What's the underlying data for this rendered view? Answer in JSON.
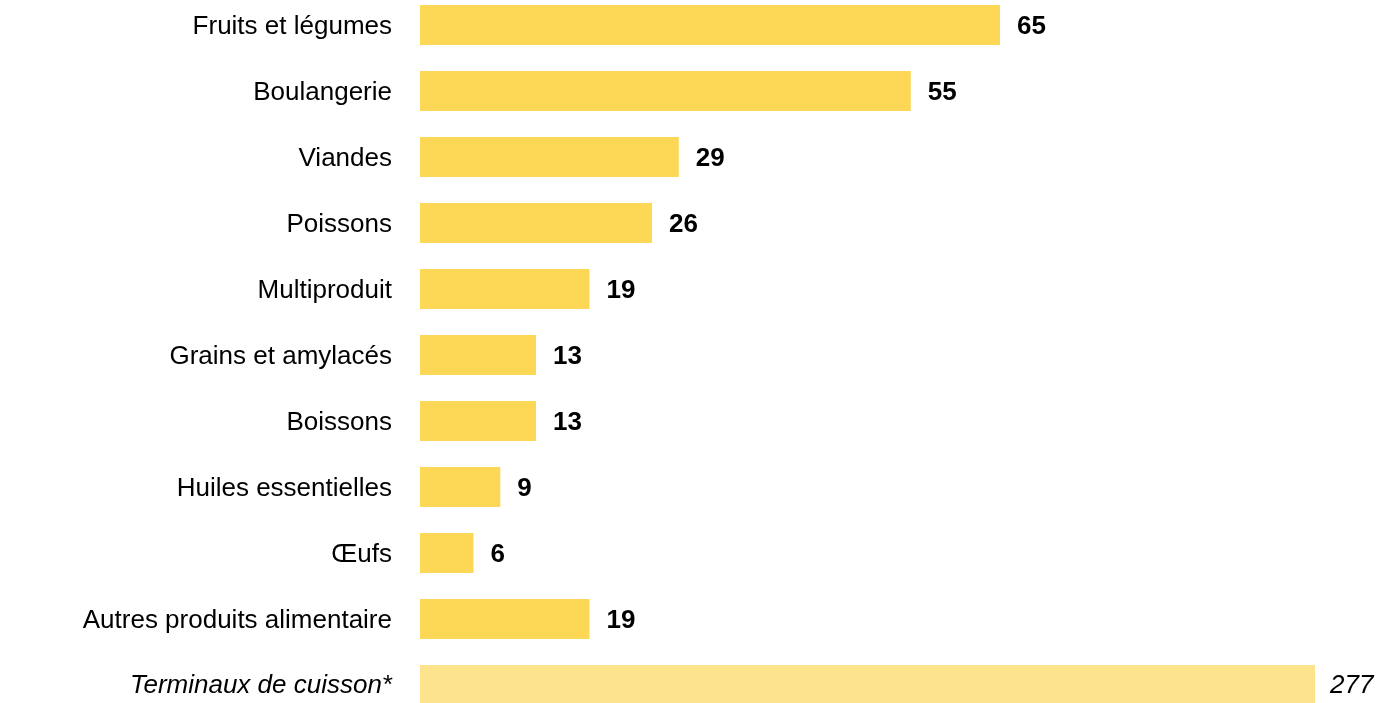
{
  "chart_data": [
    {
      "type": "bar",
      "orientation": "horizontal",
      "categories": [
        "Fruits et légumes",
        "Boulangerie",
        "Viandes",
        "Poissons",
        "Multiproduit",
        "Grains et amylacés",
        "Boissons",
        "Huiles essentielles",
        "Œufs",
        "Autres produits alimentaire"
      ],
      "values": [
        65,
        55,
        29,
        26,
        19,
        13,
        13,
        9,
        6,
        19
      ],
      "color": "#fdd756",
      "data_labels": true
    },
    {
      "type": "bar",
      "orientation": "horizontal",
      "categories": [
        "Terminaux de cuisson*"
      ],
      "values": [
        277
      ],
      "color": "#fde38c",
      "data_labels": true
    }
  ]
}
